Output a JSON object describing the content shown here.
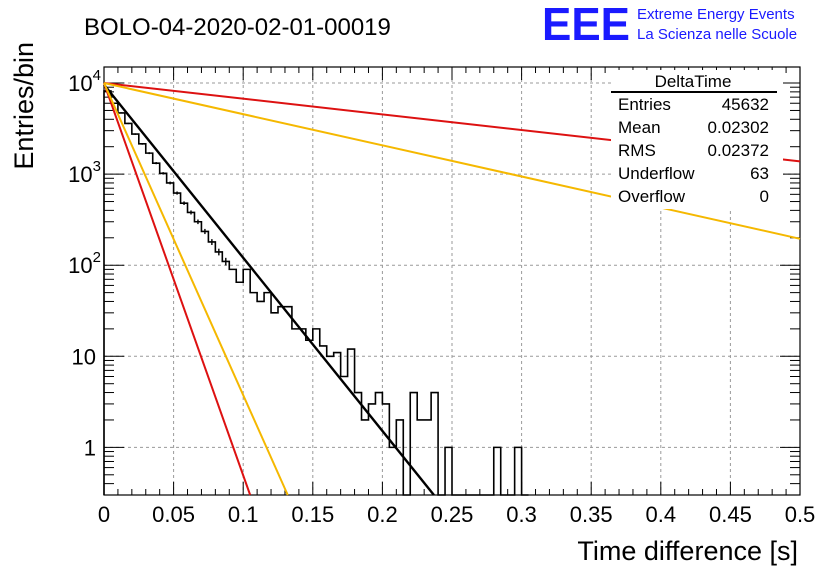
{
  "chart_data": {
    "type": "histogram",
    "title": "BOLO-04-2020-02-01-00019",
    "xlabel": "Time difference [s]",
    "ylabel": "Entries/bin",
    "x_scale": "linear",
    "y_scale": "log",
    "xlim": [
      0,
      0.5
    ],
    "ylim": [
      0.3,
      15000
    ],
    "grid": true,
    "x_ticks": [
      {
        "value": 0,
        "label": "0"
      },
      {
        "value": 0.05,
        "label": "0.05"
      },
      {
        "value": 0.1,
        "label": "0.1"
      },
      {
        "value": 0.15,
        "label": "0.15"
      },
      {
        "value": 0.2,
        "label": "0.2"
      },
      {
        "value": 0.25,
        "label": "0.25"
      },
      {
        "value": 0.3,
        "label": "0.3"
      },
      {
        "value": 0.35,
        "label": "0.35"
      },
      {
        "value": 0.4,
        "label": "0.4"
      },
      {
        "value": 0.45,
        "label": "0.45"
      },
      {
        "value": 0.5,
        "label": "0.5"
      }
    ],
    "y_ticks": [
      {
        "value": 1,
        "base": "1",
        "exp": ""
      },
      {
        "value": 10,
        "base": "10",
        "exp": ""
      },
      {
        "value": 100,
        "base": "10",
        "exp": "2"
      },
      {
        "value": 1000,
        "base": "10",
        "exp": "3"
      },
      {
        "value": 10000,
        "base": "10",
        "exp": "4"
      }
    ],
    "histogram": {
      "bin_width": 0.005,
      "color": "#000000",
      "bins": [
        {
          "x0": 0.0,
          "y": 8200
        },
        {
          "x0": 0.005,
          "y": 6000
        },
        {
          "x0": 0.01,
          "y": 4700
        },
        {
          "x0": 0.015,
          "y": 3600
        },
        {
          "x0": 0.02,
          "y": 2750
        },
        {
          "x0": 0.025,
          "y": 2150
        },
        {
          "x0": 0.03,
          "y": 1700
        },
        {
          "x0": 0.035,
          "y": 1320
        },
        {
          "x0": 0.04,
          "y": 1020
        },
        {
          "x0": 0.045,
          "y": 800
        },
        {
          "x0": 0.05,
          "y": 620
        },
        {
          "x0": 0.055,
          "y": 480
        },
        {
          "x0": 0.06,
          "y": 380
        },
        {
          "x0": 0.065,
          "y": 300
        },
        {
          "x0": 0.07,
          "y": 235
        },
        {
          "x0": 0.075,
          "y": 180
        },
        {
          "x0": 0.08,
          "y": 140
        },
        {
          "x0": 0.085,
          "y": 110
        },
        {
          "x0": 0.09,
          "y": 90
        },
        {
          "x0": 0.095,
          "y": 65
        },
        {
          "x0": 0.1,
          "y": 90
        },
        {
          "x0": 0.105,
          "y": 50
        },
        {
          "x0": 0.11,
          "y": 40
        },
        {
          "x0": 0.115,
          "y": 50
        },
        {
          "x0": 0.12,
          "y": 30
        },
        {
          "x0": 0.125,
          "y": 35
        },
        {
          "x0": 0.13,
          "y": 35
        },
        {
          "x0": 0.135,
          "y": 20
        },
        {
          "x0": 0.14,
          "y": 20
        },
        {
          "x0": 0.145,
          "y": 15
        },
        {
          "x0": 0.15,
          "y": 20
        },
        {
          "x0": 0.155,
          "y": 13
        },
        {
          "x0": 0.16,
          "y": 10
        },
        {
          "x0": 0.165,
          "y": 11
        },
        {
          "x0": 0.17,
          "y": 6
        },
        {
          "x0": 0.175,
          "y": 12
        },
        {
          "x0": 0.18,
          "y": 4
        },
        {
          "x0": 0.185,
          "y": 2
        },
        {
          "x0": 0.19,
          "y": 3
        },
        {
          "x0": 0.195,
          "y": 4
        },
        {
          "x0": 0.2,
          "y": 3
        },
        {
          "x0": 0.205,
          "y": 1
        },
        {
          "x0": 0.21,
          "y": 2
        },
        {
          "x0": 0.215,
          "y": 0
        },
        {
          "x0": 0.22,
          "y": 4
        },
        {
          "x0": 0.225,
          "y": 2
        },
        {
          "x0": 0.23,
          "y": 2
        },
        {
          "x0": 0.235,
          "y": 4
        },
        {
          "x0": 0.24,
          "y": 0
        },
        {
          "x0": 0.245,
          "y": 1
        },
        {
          "x0": 0.25,
          "y": 0
        },
        {
          "x0": 0.255,
          "y": 0
        },
        {
          "x0": 0.26,
          "y": 0
        },
        {
          "x0": 0.265,
          "y": 0
        },
        {
          "x0": 0.27,
          "y": 0
        },
        {
          "x0": 0.275,
          "y": 0
        },
        {
          "x0": 0.28,
          "y": 1
        },
        {
          "x0": 0.285,
          "y": 0
        },
        {
          "x0": 0.29,
          "y": 0
        },
        {
          "x0": 0.295,
          "y": 1
        },
        {
          "x0": 0.3,
          "y": 0
        }
      ]
    },
    "fit_lines": [
      {
        "color": "#000000",
        "points": [
          [
            0.0,
            9600
          ],
          [
            0.237,
            0.3
          ]
        ]
      },
      {
        "color": "#dd1111",
        "points": [
          [
            0.0,
            10000
          ],
          [
            0.105,
            0.3
          ]
        ]
      },
      {
        "color": "#f5b800",
        "points": [
          [
            0.0,
            10000
          ],
          [
            0.132,
            0.3
          ]
        ]
      },
      {
        "color": "#dd1111",
        "points": [
          [
            0.0,
            10000
          ],
          [
            0.5,
            1380
          ]
        ]
      },
      {
        "color": "#f5b800",
        "points": [
          [
            0.0,
            10000
          ],
          [
            0.5,
            195
          ]
        ]
      }
    ]
  },
  "stats_box": {
    "title": "DeltaTime",
    "rows": [
      {
        "label": "Entries",
        "value": "45632"
      },
      {
        "label": "Mean",
        "value": "0.02302"
      },
      {
        "label": "RMS",
        "value": "0.02372"
      },
      {
        "label": "Underflow",
        "value": "63"
      },
      {
        "label": "Overflow",
        "value": "0"
      }
    ]
  },
  "logo": {
    "mark": "EEE",
    "line1": "Extreme Energy Events",
    "line2": "La Scienza nelle Scuole",
    "color": "#1a1aff"
  }
}
